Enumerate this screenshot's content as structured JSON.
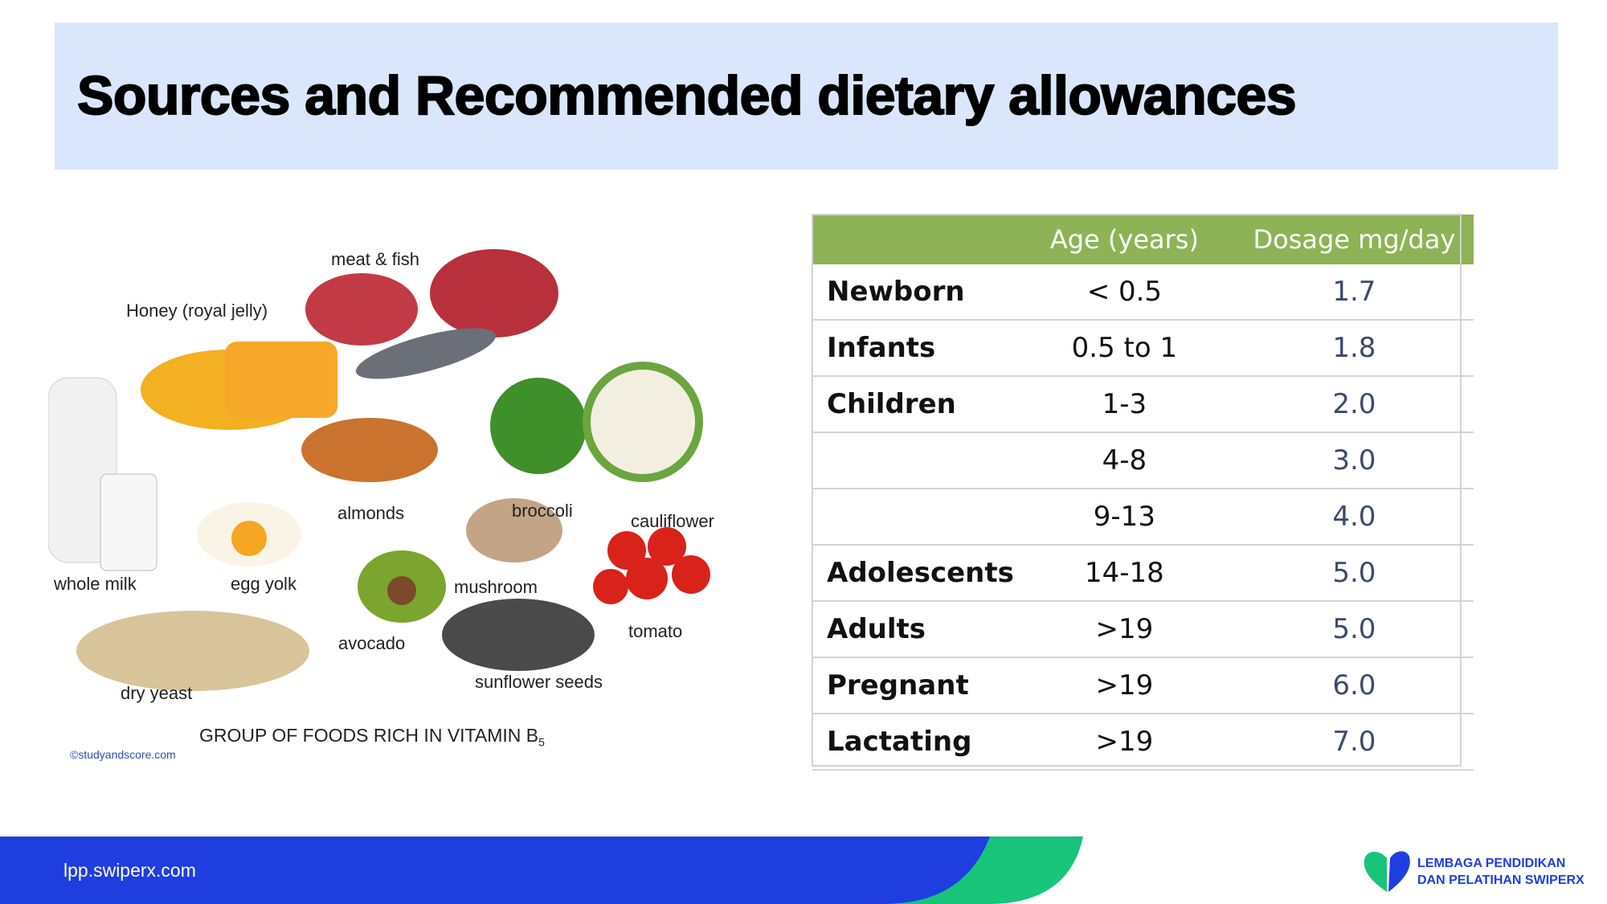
{
  "header": {
    "title": "Sources and Recommended dietary allowances"
  },
  "figure": {
    "labels": [
      "meat & fish",
      "Honey (royal jelly)",
      "almonds",
      "broccoli",
      "cauliflower",
      "whole milk",
      "egg yolk",
      "mushroom",
      "avocado",
      "tomato",
      "sunflower seeds",
      "dry yeast"
    ],
    "caption": "GROUP OF FOODS RICH IN VITAMIN B",
    "caption_subscript": "5",
    "credit": "©studyandscore.com"
  },
  "table": {
    "header": [
      null,
      "Age (years)",
      "Dosage  mg/day"
    ],
    "rows": [
      [
        "Newborn",
        "< 0.5",
        "1.7"
      ],
      [
        "Infants",
        "0.5 to 1",
        "1.8"
      ],
      [
        "Children",
        "1-3",
        "2.0"
      ],
      [
        null,
        "4-8",
        "3.0"
      ],
      [
        null,
        "9-13",
        "4.0"
      ],
      [
        "Adolescents",
        "14-18",
        "5.0"
      ],
      [
        "Adults",
        ">19",
        "5.0"
      ],
      [
        "Pregnant",
        ">19",
        "6.0"
      ],
      [
        "Lactating",
        ">19",
        "7.0"
      ]
    ]
  },
  "footer": {
    "url": "lpp.swiperx.com",
    "logo_line1": "LEMBAGA PENDIDIKAN",
    "logo_line2": "DAN PELATIHAN SWIPERX"
  }
}
